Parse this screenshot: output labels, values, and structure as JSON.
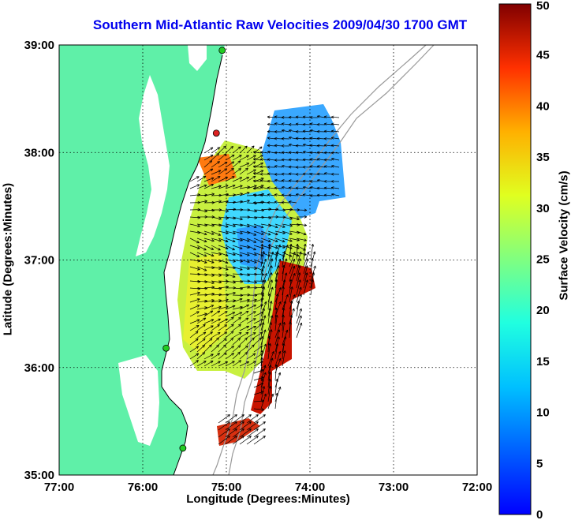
{
  "map": {
    "title": "Southern Mid-Atlantic Raw Velocities 2009/04/30 1700 GMT",
    "xlabel": "Longitude (Degrees:Minutes)",
    "ylabel": "Latitude (Degrees:Minutes)",
    "x_ticks": [
      "77:00",
      "76:00",
      "75:00",
      "74:00",
      "73:00",
      "72:00"
    ],
    "y_ticks": [
      "39:00",
      "38:00",
      "37:00",
      "36:00",
      "35:00"
    ],
    "land_color": "#5ff0a8",
    "gridlines": "dotted"
  },
  "colorbar": {
    "label": "Surface Velocity (cm/s)",
    "ticks": [
      "50",
      "45",
      "40",
      "35",
      "30",
      "25",
      "20",
      "15",
      "10",
      "5",
      "0"
    ],
    "min": 0,
    "max": 50,
    "colormap": "jet"
  },
  "stations": [
    {
      "lon": -75.05,
      "lat": 38.95
    },
    {
      "lon": -75.12,
      "lat": 38.18
    },
    {
      "lon": -75.72,
      "lat": 36.18
    },
    {
      "lon": -75.52,
      "lat": 35.25
    }
  ],
  "station_colors": [
    "#22cc22",
    "#dd2222",
    "#22cc22",
    "#22cc22"
  ]
}
